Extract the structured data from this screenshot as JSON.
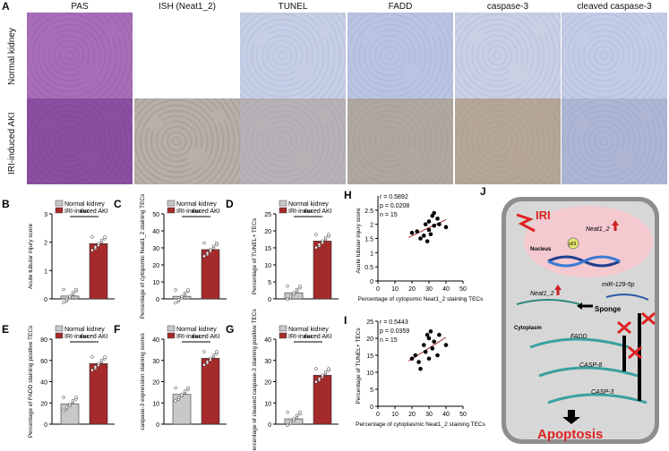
{
  "panel_a": {
    "label": "A",
    "columns": [
      "PAS",
      "ISH (",
      "Neat1_2",
      ")",
      "TUNEL",
      "FADD",
      "caspase-3",
      "cleaved caspase-3"
    ],
    "column_titles": [
      "PAS",
      "ISH (Neat1_2)",
      "TUNEL",
      "FADD",
      "caspase-3",
      "cleaved caspase-3"
    ],
    "rows": [
      "Normal kidney",
      "IRI-induced AKI"
    ]
  },
  "legend": {
    "normal": "Normal kidney",
    "aki": "IRI-induced AKI"
  },
  "colors": {
    "normal_bar": "#c8c8c8",
    "aki_bar": "#a52a2a",
    "pas": "#8e4f9c",
    "ish": "#bdbdbd",
    "ihc_blue": "#9aa6cc",
    "ihc_brown": "#a89486"
  },
  "significance": "***",
  "chart_data": [
    {
      "panel": "B",
      "type": "bar",
      "categories": [
        "Normal kidney",
        "IRI-induced AKI"
      ],
      "values": [
        0.1,
        1.95
      ],
      "ylabel": "Acute tubular injury score",
      "ylim": [
        0,
        3
      ],
      "yticks": [
        0,
        1,
        2,
        3
      ]
    },
    {
      "panel": "C",
      "type": "bar",
      "categories": [
        "Normal kidney",
        "IRI-induced AKI"
      ],
      "values": [
        1.5,
        29
      ],
      "ylabel": "Percentage of cytopsmic Neat1_2 staining TECs",
      "ylim": [
        0,
        50
      ],
      "yticks": [
        0,
        10,
        20,
        30,
        40,
        50
      ]
    },
    {
      "panel": "D",
      "type": "bar",
      "categories": [
        "Normal kidney",
        "IRI-induced AKI"
      ],
      "values": [
        1.8,
        17
      ],
      "ylabel": "Percentage of TUNEL+ TECs",
      "ylim": [
        0,
        25
      ],
      "yticks": [
        0,
        5,
        10,
        15,
        20,
        25
      ]
    },
    {
      "panel": "E",
      "type": "bar",
      "categories": [
        "Normal kidney",
        "IRI-induced AKI"
      ],
      "values": [
        19,
        57
      ],
      "ylabel": "Percentage of FADD staining positive TECs",
      "ylim": [
        0,
        80
      ],
      "yticks": [
        0,
        20,
        40,
        60,
        80
      ]
    },
    {
      "panel": "F",
      "type": "bar",
      "categories": [
        "Normal kidney",
        "IRI-induced AKI"
      ],
      "values": [
        14,
        31
      ],
      "ylabel": "caspase-3 expression staining scores",
      "ylim": [
        0,
        40
      ],
      "yticks": [
        0,
        10,
        20,
        30,
        40
      ]
    },
    {
      "panel": "G",
      "type": "bar",
      "categories": [
        "Normal kidney",
        "IRI-induced AKI"
      ],
      "values": [
        2.5,
        23
      ],
      "ylabel": "Percentage of cleaved caspase-3 staining positive TECs",
      "ylim": [
        0,
        40
      ],
      "yticks": [
        0,
        10,
        20,
        30,
        40
      ]
    },
    {
      "panel": "H",
      "type": "scatter",
      "stats": [
        "r = 0.5892",
        "p = 0.0208",
        "n = 15"
      ],
      "xlabel": "Percentage of cytopsmic Neat1_2 staining TECs",
      "ylabel": "Acute tubular injury score",
      "xlim": [
        0,
        50
      ],
      "ylim": [
        0,
        3
      ],
      "xticks": [
        0,
        10,
        20,
        30,
        40,
        50
      ],
      "yticks": [
        0,
        0.5,
        1,
        1.5,
        2,
        2.5
      ],
      "x": [
        20,
        23,
        25,
        27,
        28,
        29,
        30,
        30,
        31,
        32,
        33,
        33,
        35,
        36,
        40
      ],
      "y": [
        1.7,
        1.75,
        1.5,
        1.6,
        2.0,
        1.4,
        2.1,
        1.8,
        1.65,
        2.3,
        2.4,
        1.95,
        2.2,
        2.0,
        1.9
      ]
    },
    {
      "panel": "I",
      "type": "scatter",
      "stats": [
        "r = 0.5443",
        "p = 0.0359",
        "n = 15"
      ],
      "xlabel": "Percentage of cytoplasmic Neat1_2 staining TECs",
      "ylabel": "Percentage of TUNEL+ TECs",
      "xlim": [
        0,
        50
      ],
      "ylim": [
        0,
        25
      ],
      "xticks": [
        0,
        10,
        20,
        30,
        40,
        50
      ],
      "yticks": [
        0,
        5,
        10,
        15,
        20,
        25
      ],
      "x": [
        20,
        22,
        24,
        25,
        27,
        28,
        29,
        30,
        30,
        31,
        32,
        33,
        35,
        36,
        40
      ],
      "y": [
        14,
        15,
        13,
        11,
        18,
        16,
        21,
        20,
        14,
        22,
        17,
        19,
        15,
        21,
        18
      ]
    }
  ],
  "panel_j": {
    "label": "J",
    "iri": "IRI",
    "nucleus": "Nucleus",
    "cytoplasm": "Cytoplasm",
    "p53": "p53",
    "neat1_nuc": "Neat1_2",
    "neat1_cyto": "Neat1_2",
    "mir": "miR-129-5p",
    "sponge": "Sponge",
    "fadd": "FADD",
    "casp8": "CASP-8",
    "casp3": "CASP-3",
    "apoptosis": "Apoptosis"
  }
}
